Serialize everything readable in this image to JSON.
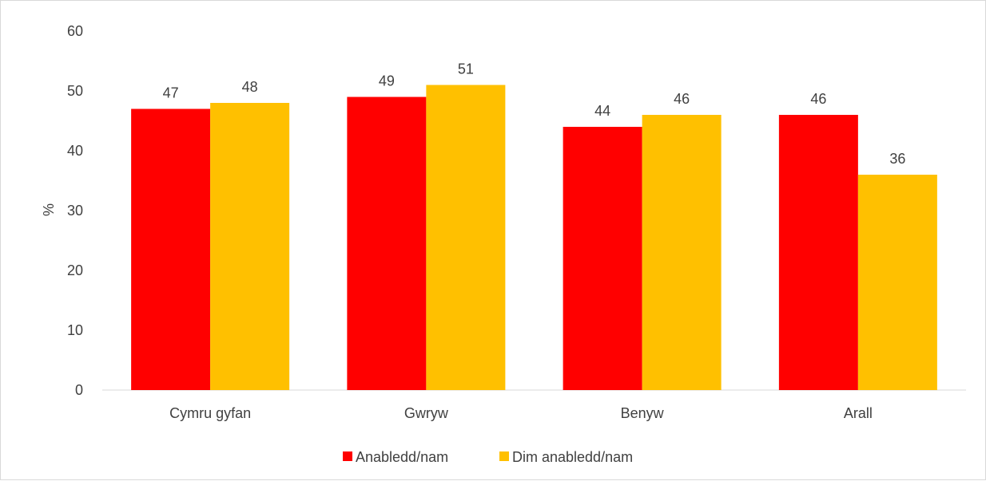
{
  "chart_data": {
    "type": "bar",
    "title": "",
    "xlabel": "",
    "ylabel": "%",
    "ylim": [
      0,
      60
    ],
    "yticks": [
      0,
      10,
      20,
      30,
      40,
      50,
      60
    ],
    "grid": false,
    "legend_position": "bottom",
    "categories": [
      "Cymru gyfan",
      "Gwryw",
      "Benyw",
      "Arall"
    ],
    "series": [
      {
        "name": "Anabledd/nam",
        "color": "#ff0000",
        "values": [
          47,
          49,
          44,
          46
        ]
      },
      {
        "name": "Dim anabledd/nam",
        "color": "#ffc000",
        "values": [
          48,
          51,
          46,
          36
        ]
      }
    ]
  }
}
